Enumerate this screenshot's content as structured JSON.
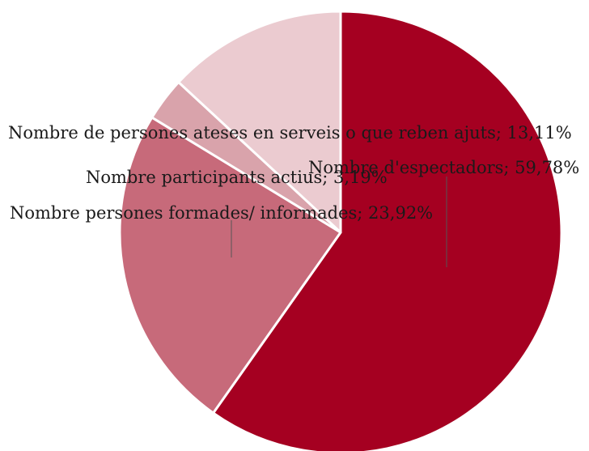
{
  "chart_data": {
    "type": "pie",
    "title": "",
    "slices": [
      {
        "label": "Nombre d'espectadors; 59,78%",
        "category": "Nombre d'espectadors",
        "value": 59.78,
        "color": "#a50021"
      },
      {
        "label": "Nombre persones formades/ informades; 23,92%",
        "category": "Nombre persones formades/ informades",
        "value": 23.92,
        "color": "#c76a7a"
      },
      {
        "label": "Nombre participants actius; 3,19%",
        "category": "Nombre participants actius",
        "value": 3.19,
        "color": "#d9a3ab"
      },
      {
        "label": "Nombre de persones ateses en serveis o que reben ajuts; 13,11%",
        "category": "Nombre de persones ateses en serveis o que reben ajuts",
        "value": 13.11,
        "color": "#ebcbd0"
      }
    ],
    "start_angle": "12 o'clock",
    "direction": "clockwise",
    "legend": "none"
  }
}
